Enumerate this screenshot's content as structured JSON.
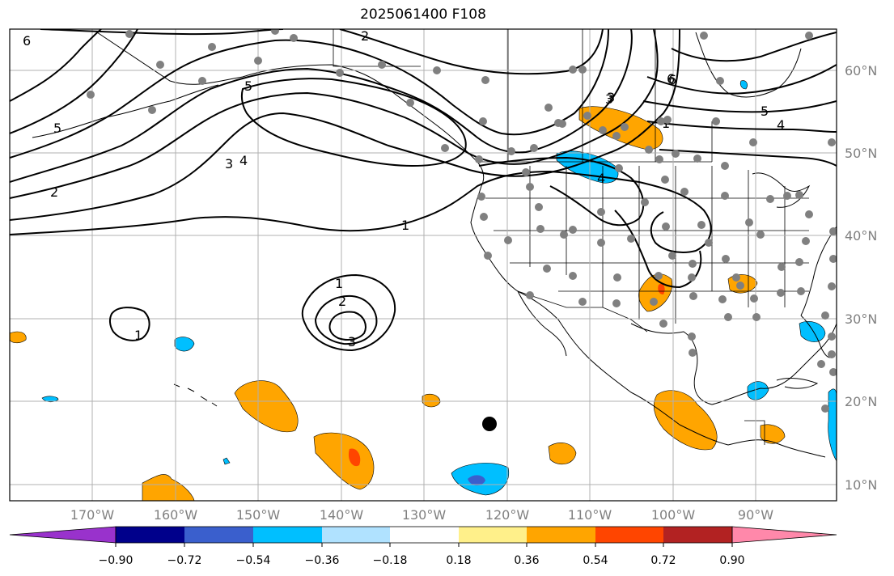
{
  "title": "2025061400 F108",
  "map": {
    "lon_labels": [
      "170°W",
      "160°W",
      "150°W",
      "140°W",
      "130°W",
      "120°W",
      "110°W",
      "100°W",
      "90°W"
    ],
    "lat_labels": [
      "60°N",
      "50°N",
      "40°N",
      "30°N",
      "20°N",
      "10°N"
    ],
    "contour_labels": [
      "6",
      "5",
      "4",
      "3",
      "2",
      "1",
      "2",
      "3",
      "4",
      "5",
      "6",
      "1",
      "2",
      "3",
      "1",
      "1",
      "3",
      "4",
      "5",
      "6"
    ],
    "colors": {
      "purple": "#9932cc",
      "navy": "#00008b",
      "royal": "#3a5fcd",
      "sky": "#00bfff",
      "lightblue": "#b0e2ff",
      "white": "#ffffff",
      "lightyellow": "#fff08a",
      "orange": "#ffa500",
      "orangered": "#ff4500",
      "firebrick": "#b22222",
      "pink": "#ff88aa",
      "station": "#808080"
    }
  },
  "colorbar": {
    "ticks": [
      "−0.90",
      "−0.72",
      "−0.54",
      "−0.36",
      "−0.18",
      "0.18",
      "0.36",
      "0.54",
      "0.72",
      "0.90"
    ]
  }
}
